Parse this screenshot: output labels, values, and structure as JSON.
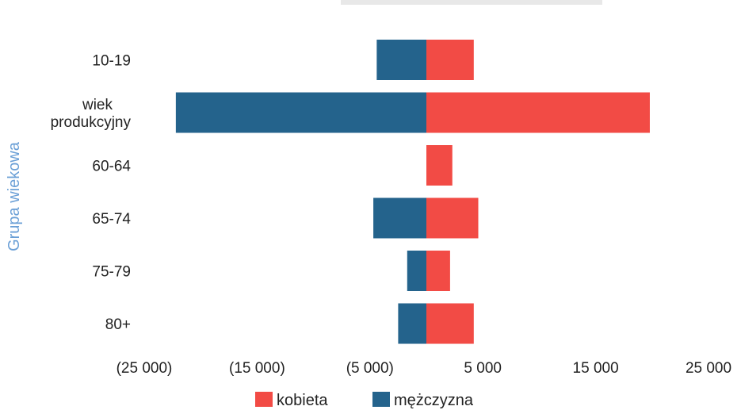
{
  "chart_data": {
    "type": "bar",
    "orientation": "horizontal",
    "stacked": "diverging",
    "title": "",
    "ylabel": "Grupa wiekowa",
    "xlabel": "",
    "categories": [
      "10-19",
      "wiek produkcyjny",
      "60-64",
      "65-74",
      "75-79",
      "80+"
    ],
    "category_lines": [
      [
        "10-19"
      ],
      [
        "wiek",
        "produkcyjny"
      ],
      [
        "60-64"
      ],
      [
        "65-74"
      ],
      [
        "75-79"
      ],
      [
        "80+"
      ]
    ],
    "series": [
      {
        "name": "kobieta",
        "color": "#f24b45",
        "values": [
          4200,
          19800,
          2300,
          4600,
          2100,
          4200
        ]
      },
      {
        "name": "mężczyzna",
        "color": "#24638c",
        "values": [
          -4400,
          -22200,
          0,
          -4700,
          -1700,
          -2500
        ]
      }
    ],
    "xlim": [
      -25000,
      25000
    ],
    "xticks": [
      -25000,
      -15000,
      -5000,
      5000,
      15000,
      25000
    ],
    "xtick_labels": [
      "(25 000)",
      "(15 000)",
      "(5 000)",
      "5 000",
      "15 000",
      "25 000"
    ],
    "grid": false,
    "legend_position": "bottom"
  }
}
